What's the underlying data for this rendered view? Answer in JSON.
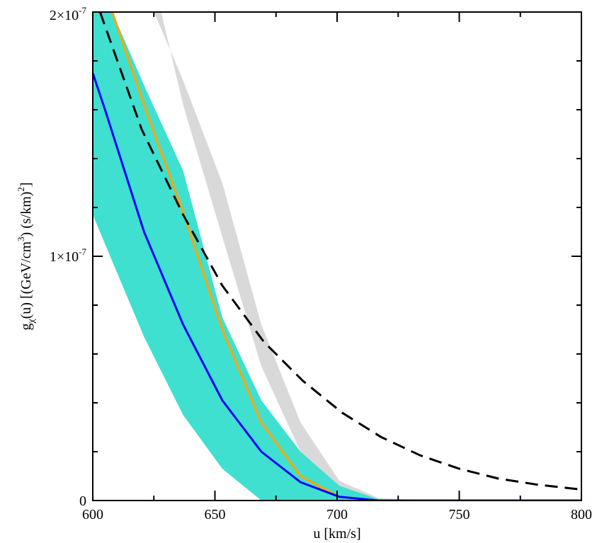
{
  "chart_data": {
    "type": "line",
    "xlabel": "u [km/s]",
    "ylabel": {
      "g": "g",
      "chi": "χ",
      "u_paren": "(u) [(GeV/cm",
      "three": "3",
      "mid": ") (s/km)",
      "two": "2",
      "close": "]"
    },
    "xlim": [
      600,
      800
    ],
    "ylim": [
      0,
      2e-07
    ],
    "x_ticks": [
      600,
      650,
      700,
      750,
      800
    ],
    "x_tick_labels": [
      "600",
      "650",
      "700",
      "750",
      "800"
    ],
    "y_ticks": [
      0,
      1e-07,
      2e-07
    ],
    "y_tick_labels": [
      {
        "base": "0",
        "exp": ""
      },
      {
        "base": "1×10",
        "exp": "-7"
      },
      {
        "base": "2×10",
        "exp": "-7"
      }
    ],
    "grid": false,
    "bands": [
      {
        "name": "gray band",
        "color": "#d9d9d9",
        "upper": [
          [
            625,
            2e-07
          ],
          [
            637,
            1.72e-07
          ],
          [
            653,
            1.3e-07
          ],
          [
            669,
            7.2e-08
          ],
          [
            685,
            3.2e-08
          ],
          [
            701,
            8e-09
          ],
          [
            717,
            1e-09
          ],
          [
            740,
            0
          ],
          [
            800,
            0
          ]
        ],
        "lower": [
          [
            800,
            0
          ],
          [
            740,
            0
          ],
          [
            717,
            0.0
          ],
          [
            701,
            2e-09
          ],
          [
            685,
            2e-08
          ],
          [
            669,
            5.5e-08
          ],
          [
            653,
            1.08e-07
          ],
          [
            637,
            1.62e-07
          ],
          [
            628,
            2e-07
          ]
        ]
      },
      {
        "name": "turquoise band",
        "color": "#40e0d0",
        "upper": [
          [
            600,
            2e-07
          ],
          [
            608,
            2e-07
          ],
          [
            621,
            1.7e-07
          ],
          [
            637,
            1.35e-07
          ],
          [
            653,
            7.5e-08
          ],
          [
            669,
            4.1e-08
          ],
          [
            685,
            2e-08
          ],
          [
            701,
            6e-09
          ],
          [
            717,
            5e-10
          ],
          [
            740,
            0
          ]
        ],
        "lower": [
          [
            740,
            0
          ],
          [
            717,
            0
          ],
          [
            701,
            0
          ],
          [
            685,
            0
          ],
          [
            669,
            0
          ],
          [
            653,
            1.3e-08
          ],
          [
            637,
            3.5e-08
          ],
          [
            621,
            6.7e-08
          ],
          [
            605,
            1.05e-07
          ],
          [
            600,
            1.17e-07
          ]
        ]
      }
    ],
    "series": [
      {
        "name": "orange line",
        "color": "#ffa500",
        "style": "solid",
        "x": [
          608,
          621,
          637,
          653,
          669,
          685,
          701,
          717,
          740,
          800
        ],
        "y": [
          2e-07,
          1.62e-07,
          1.18e-07,
          7e-08,
          3.2e-08,
          1e-08,
          1.5e-09,
          0.0,
          0.0,
          0.0
        ]
      },
      {
        "name": "blue line",
        "color": "#0000ff",
        "style": "solid",
        "x": [
          600,
          605,
          621,
          637,
          653,
          669,
          685,
          701,
          717,
          740,
          800
        ],
        "y": [
          1.75e-07,
          1.6e-07,
          1.1e-07,
          7.2e-08,
          4.1e-08,
          2e-08,
          7.5e-09,
          1.5e-09,
          0.0,
          0.0,
          0.0
        ]
      },
      {
        "name": "black dashed line",
        "color": "#000000",
        "style": "dashed",
        "x": [
          603,
          620,
          637,
          653,
          670,
          686,
          702,
          718,
          734,
          750,
          766,
          782,
          800
        ],
        "y": [
          2e-07,
          1.52e-07,
          1.17e-07,
          8.8e-08,
          6.5e-08,
          4.9e-08,
          3.6e-08,
          2.6e-08,
          1.85e-08,
          1.3e-08,
          9e-09,
          6.5e-09,
          4.5e-09
        ]
      }
    ]
  }
}
